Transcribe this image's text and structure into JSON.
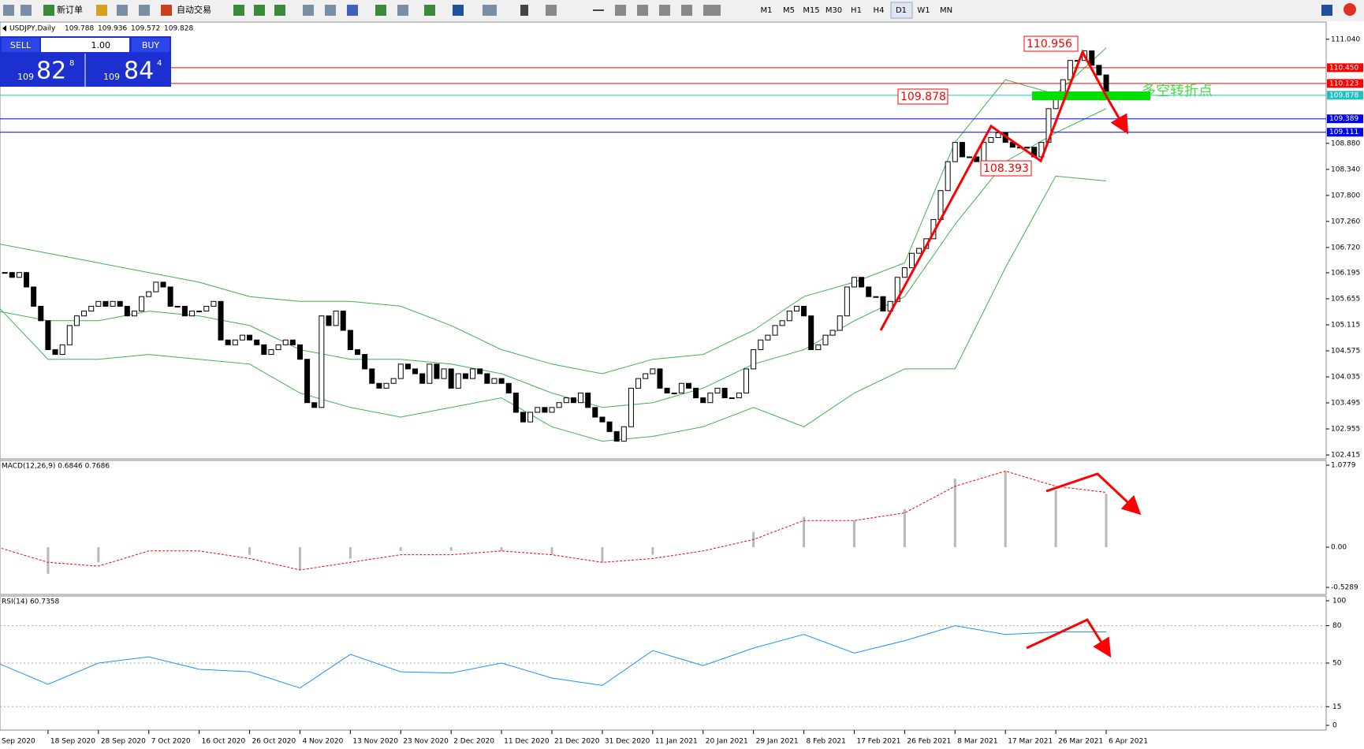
{
  "toolbar": {
    "buttons": [
      "新订单",
      "自动交易"
    ],
    "timeframes": [
      "M1",
      "M5",
      "M15",
      "M30",
      "H1",
      "H4",
      "D1",
      "W1",
      "MN"
    ]
  },
  "order_panel": {
    "sell": "SELL",
    "volume": "1.00",
    "buy": "BUY",
    "bid": [
      "109",
      "82",
      "8"
    ],
    "ask": [
      "109",
      "84",
      "4"
    ]
  },
  "chart_data": [
    {
      "type": "candlestick",
      "symbol": "USDJPY,Daily",
      "ohlc": [
        109.788,
        109.936,
        109.572,
        109.828
      ],
      "closes": [
        106.2,
        106.2,
        106.1,
        106.2,
        105.9,
        105.5,
        105.2,
        104.6,
        104.5,
        104.7,
        105.1,
        105.3,
        105.4,
        105.5,
        105.6,
        105.5,
        105.6,
        105.5,
        105.3,
        105.4,
        105.7,
        105.8,
        106.0,
        105.9,
        105.5,
        105.5,
        105.3,
        105.4,
        105.4,
        105.5,
        105.6,
        104.8,
        104.7,
        104.8,
        104.9,
        104.8,
        104.7,
        104.5,
        104.6,
        104.7,
        104.8,
        104.7,
        104.4,
        103.5,
        103.4,
        105.3,
        105.1,
        105.4,
        105.0,
        104.6,
        104.5,
        104.2,
        103.9,
        103.8,
        103.9,
        104.0,
        104.3,
        104.2,
        104.1,
        103.9,
        104.3,
        104.0,
        104.2,
        103.8,
        104.1,
        104.0,
        104.2,
        104.1,
        103.9,
        104.0,
        103.9,
        103.7,
        103.3,
        103.1,
        103.3,
        103.4,
        103.3,
        103.4,
        103.5,
        103.6,
        103.5,
        103.7,
        103.4,
        103.2,
        103.1,
        102.9,
        102.7,
        103.0,
        103.8,
        104.0,
        104.1,
        104.2,
        103.8,
        103.7,
        103.7,
        103.9,
        103.8,
        103.6,
        103.5,
        103.7,
        103.8,
        103.6,
        103.6,
        103.7,
        104.2,
        104.6,
        104.8,
        104.9,
        105.1,
        105.2,
        105.4,
        105.5,
        105.3,
        104.6,
        104.7,
        104.9,
        105.0,
        105.3,
        105.9,
        106.1,
        105.9,
        105.7,
        105.7,
        105.4,
        105.6,
        106.1,
        106.3,
        106.6,
        106.7,
        106.9,
        107.3,
        107.9,
        108.5,
        108.9,
        108.6,
        108.6,
        108.5,
        108.9,
        109.0,
        109.1,
        108.9,
        108.8,
        108.8,
        108.8,
        108.6,
        108.9,
        109.6,
        109.9,
        110.2,
        110.6,
        110.6,
        110.8,
        110.5,
        110.3,
        109.8
      ],
      "date_labels": [
        "Sep 2020",
        "18 Sep 2020",
        "28 Sep 2020",
        "7 Oct 2020",
        "16 Oct 2020",
        "26 Oct 2020",
        "4 Nov 2020",
        "13 Nov 2020",
        "23 Nov 2020",
        "2 Dec 2020",
        "11 Dec 2020",
        "21 Dec 2020",
        "31 Dec 2020",
        "11 Jan 2021",
        "20 Jan 2021",
        "29 Jan 2021",
        "8 Feb 2021",
        "17 Feb 2021",
        "26 Feb 2021",
        "8 Mar 2021",
        "17 Mar 2021",
        "26 Mar 2021",
        "6 Apr 2021"
      ],
      "ylim": [
        102.35,
        111.38
      ],
      "yticks": [
        {
          "value": 111.04,
          "label": "111.040"
        },
        {
          "value": 108.88,
          "label": "108.880"
        },
        {
          "value": 108.34,
          "label": "108.340"
        },
        {
          "value": 107.8,
          "label": "107.800"
        },
        {
          "value": 107.26,
          "label": "107.260"
        },
        {
          "value": 106.72,
          "label": "106.720"
        },
        106.195,
        105.655,
        105.115,
        104.575,
        104.035,
        103.495,
        102.955,
        102.415
      ],
      "levels": [
        {
          "value": 110.45,
          "label": "110.450",
          "color": "#ff0000"
        },
        {
          "value": 110.123,
          "label": "110.123",
          "color": "#ff0000"
        },
        {
          "value": 109.878,
          "label": "109.878",
          "color": "#20c0c0"
        },
        {
          "value": 109.389,
          "label": "109.389",
          "color": "#0000ff"
        },
        {
          "value": 109.111,
          "label": "109.111",
          "color": "#0000ff"
        }
      ],
      "bands": {
        "color": "#3cb44b",
        "upper": [
          106.8,
          106.6,
          106.4,
          106.2,
          106.0,
          105.7,
          105.6,
          105.6,
          105.5,
          105.1,
          104.6,
          104.3,
          104.1,
          104.4,
          104.5,
          105.0,
          105.7,
          106.0,
          106.4,
          108.9,
          110.2,
          109.9,
          110.86
        ],
        "middle": [
          105.4,
          105.2,
          105.2,
          105.4,
          105.3,
          105.1,
          104.6,
          104.4,
          104.4,
          104.3,
          104.1,
          103.7,
          103.4,
          103.5,
          103.8,
          104.3,
          104.6,
          105.2,
          105.7,
          107.2,
          108.5,
          109.1,
          109.6
        ],
        "lower": [
          105.5,
          104.4,
          104.4,
          104.5,
          104.4,
          104.3,
          103.7,
          103.4,
          103.2,
          103.4,
          103.6,
          103.0,
          102.7,
          102.8,
          103.0,
          103.4,
          103.0,
          103.7,
          104.2,
          104.2,
          106.3,
          108.2,
          108.1
        ]
      },
      "annotations": [
        "110.956",
        "109.878",
        "108.393",
        "多空转折点"
      ]
    },
    {
      "type": "macd",
      "label": "MACD(12,26,9) 0.6846 0.7686",
      "histogram": [
        0,
        -0.35,
        -0.2,
        0,
        0,
        -0.1,
        -0.3,
        -0.15,
        -0.05,
        -0.05,
        -0.05,
        -0.1,
        -0.2,
        -0.1,
        0,
        0.2,
        0.4,
        0.35,
        0.5,
        0.9,
        1.0,
        0.75,
        0.7
      ],
      "signal": [
        0,
        -0.2,
        -0.25,
        -0.05,
        -0.05,
        -0.15,
        -0.3,
        -0.2,
        -0.1,
        -0.1,
        -0.05,
        -0.1,
        -0.2,
        -0.15,
        -0.05,
        0.1,
        0.35,
        0.35,
        0.45,
        0.8,
        1.0,
        0.8,
        0.72
      ],
      "ylim": [
        -0.5289,
        1.0779
      ],
      "yticks": [
        1.0779,
        {
          "value": 0,
          "label": "0.00"
        },
        -0.5289
      ]
    },
    {
      "type": "rsi",
      "label": "RSI(14) 60.7358",
      "values": [
        50,
        33,
        50,
        55,
        45,
        43,
        30,
        57,
        43,
        42,
        50,
        38,
        32,
        60,
        48,
        62,
        73,
        58,
        68,
        80,
        73,
        75,
        75
      ],
      "ylim": [
        0,
        100
      ],
      "yticks": [
        100,
        80,
        50,
        15,
        0
      ],
      "grid": true
    }
  ]
}
